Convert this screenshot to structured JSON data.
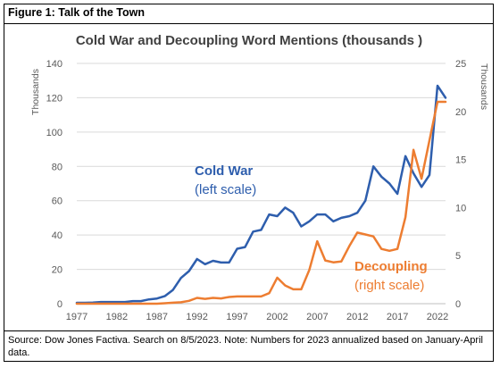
{
  "figure_label": "Figure 1: Talk of the Town",
  "source_note": "Source: Dow Jones Factiva.  Search on 8/5/2023.  Note: Numbers for 2023 annualized based on January-April data.",
  "chart_data": {
    "type": "line",
    "title": "Cold War and Decoupling Word Mentions (thousands )",
    "x": [
      1977,
      1978,
      1979,
      1980,
      1981,
      1982,
      1983,
      1984,
      1985,
      1986,
      1987,
      1988,
      1989,
      1990,
      1991,
      1992,
      1993,
      1994,
      1995,
      1996,
      1997,
      1998,
      1999,
      2000,
      2001,
      2002,
      2003,
      2004,
      2005,
      2006,
      2007,
      2008,
      2009,
      2010,
      2011,
      2012,
      2013,
      2014,
      2015,
      2016,
      2017,
      2018,
      2019,
      2020,
      2021,
      2022,
      2023
    ],
    "x_ticks": [
      "1977",
      "1982",
      "1987",
      "1992",
      "1997",
      "2002",
      "2007",
      "2012",
      "2017",
      "2022"
    ],
    "y_left": {
      "label": "Thousands",
      "min": 0,
      "max": 140,
      "ticks": [
        "0",
        "20",
        "40",
        "60",
        "80",
        "100",
        "120",
        "140"
      ]
    },
    "y_right": {
      "label": "Thousands",
      "min": 0,
      "max": 25,
      "ticks": [
        "0",
        "5",
        "10",
        "15",
        "20",
        "25"
      ]
    },
    "grid": true,
    "series": [
      {
        "name": "Cold War",
        "axis": "left",
        "color": "#2e5ead",
        "annotation": [
          "Cold War",
          "(left scale)"
        ],
        "values": [
          0.5,
          0.5,
          0.6,
          1,
          1,
          1,
          1,
          1.5,
          1.5,
          2.5,
          3,
          4.5,
          8,
          15,
          19,
          26,
          23,
          25,
          24,
          24,
          32,
          33,
          42,
          43,
          52,
          51,
          56,
          53,
          45,
          48,
          52,
          52,
          48,
          50,
          51,
          53,
          60,
          80,
          74,
          70,
          64,
          86,
          76,
          68,
          75,
          127,
          120
        ]
      },
      {
        "name": "Decoupling",
        "axis": "right",
        "color": "#ed7d31",
        "annotation": [
          "Decoupling",
          "(right scale)"
        ],
        "values": [
          0,
          0,
          0,
          0,
          0,
          0,
          0,
          0,
          0,
          0,
          0,
          0.05,
          0.1,
          0.15,
          0.3,
          0.6,
          0.5,
          0.6,
          0.55,
          0.7,
          0.75,
          0.75,
          0.75,
          0.75,
          1.1,
          2.7,
          1.9,
          1.5,
          1.5,
          3.5,
          6.5,
          4.5,
          4.3,
          4.4,
          6.0,
          7.4,
          7.2,
          7.0,
          5.7,
          5.5,
          5.7,
          9.0,
          16,
          13,
          17,
          21,
          21
        ]
      }
    ]
  }
}
